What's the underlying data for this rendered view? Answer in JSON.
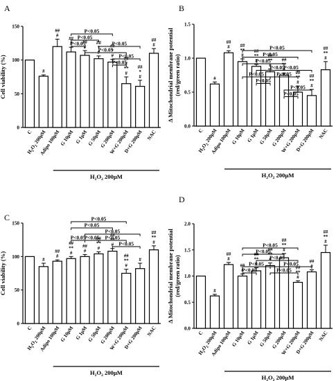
{
  "figure": {
    "x_labels": [
      "C",
      "H2O2 200μM",
      "Adipo 100μM",
      "G 10μM",
      "G 1μM",
      "G 50μM",
      "G 200μM",
      "W+G 200μM",
      "D+G 200μM",
      "NAC"
    ],
    "group_label": "H2O2 200μM",
    "bracket_text": "P<0.05"
  },
  "chart_data": [
    {
      "panel": "A",
      "type": "bar",
      "ylabel": "Cell viability (%)",
      "ylim": [
        0,
        150
      ],
      "yticks": [
        0,
        50,
        100,
        150
      ],
      "categories": [
        "C",
        "H2O2 200μM",
        "Adipo 100μM",
        "G 10μM",
        "G 1μM",
        "G 50μM",
        "G 200μM",
        "W+G 200μM",
        "D+G 200μM",
        "NAC"
      ],
      "values": [
        100,
        76,
        120,
        112,
        107,
        102,
        97,
        65,
        61,
        110
      ],
      "errors": [
        0,
        2,
        11,
        7,
        7,
        4,
        4,
        10,
        9,
        7
      ],
      "annotations": [
        [],
        [
          "#"
        ],
        [
          "##",
          "#"
        ],
        [
          "##",
          "#"
        ],
        [
          "##",
          "#"
        ],
        [
          "##",
          "*",
          "#"
        ],
        [
          "##",
          "*",
          "#"
        ],
        [
          "##",
          "#",
          "**",
          "#"
        ],
        [
          "##",
          "*",
          "#"
        ],
        [
          "##",
          "#"
        ]
      ],
      "brackets": [
        {
          "from": 3,
          "to": 6,
          "level": 0,
          "label": "P<0.05"
        },
        {
          "from": 3,
          "to": 5,
          "level": 1,
          "label": "P<0.05"
        },
        {
          "from": 3,
          "to": 4,
          "level": 2,
          "label": "P<0.05"
        },
        {
          "from": 4,
          "to": 7,
          "level": 3,
          "label": "P<0.05"
        },
        {
          "from": 5,
          "to": 8,
          "level": 2,
          "label": "P<0.05"
        },
        {
          "from": 6,
          "to": 8,
          "level": 4,
          "label": "P<0.05"
        },
        {
          "from": 6,
          "to": 7,
          "level": 5,
          "label": "P<0.05"
        }
      ]
    },
    {
      "panel": "B",
      "type": "bar",
      "ylabel": "Δ Mitochondrial membrane potential (red/green ratio)",
      "ylim": [
        0,
        1.5
      ],
      "yticks": [
        0,
        0.5,
        1.0,
        1.5
      ],
      "categories": [
        "C",
        "H2O2 200μM",
        "Adipo 100μM",
        "G 10μM",
        "G 1μM",
        "G 50μM",
        "G 200μM",
        "W+G 200μM",
        "D+G 200μM",
        "NAC"
      ],
      "values": [
        1.0,
        0.62,
        1.08,
        0.95,
        0.88,
        0.8,
        0.75,
        0.5,
        0.45,
        0.83
      ],
      "errors": [
        0,
        0.03,
        0.03,
        0.04,
        0.03,
        0.04,
        0.03,
        0.09,
        0.09,
        0.12
      ],
      "annotations": [
        [],
        [
          "#"
        ],
        [
          "##",
          "#"
        ],
        [
          "##",
          "**",
          "#"
        ],
        [
          "##",
          "**",
          "#"
        ],
        [
          "##",
          "**",
          "#"
        ],
        [
          "##",
          "**",
          "#"
        ],
        [
          "##",
          "**",
          "#"
        ],
        [
          "##",
          "**",
          "#"
        ],
        [
          "##",
          "**",
          "#"
        ]
      ],
      "brackets": [
        {
          "from": 3,
          "to": 8,
          "level": 0,
          "label": "P<0.05"
        },
        {
          "from": 3,
          "to": 7,
          "level": 1,
          "label": "P<0.05"
        },
        {
          "from": 3,
          "to": 6,
          "level": 2,
          "label": "P<0.05"
        },
        {
          "from": 4,
          "to": 7,
          "level": 3,
          "label": "P<0.05"
        },
        {
          "from": 3,
          "to": 5,
          "level": 4,
          "label": "P<0.05"
        },
        {
          "from": 5,
          "to": 7,
          "level": 4,
          "label": "P<0.05"
        },
        {
          "from": 5,
          "to": 8,
          "level": 3,
          "label": "P<0.05"
        },
        {
          "from": 4,
          "to": 5,
          "level": 5,
          "label": "P<0.05"
        },
        {
          "from": 6,
          "to": 8,
          "level": 6,
          "label": "P<0.05"
        },
        {
          "from": 6,
          "to": 7,
          "level": 7,
          "label": "P<0.05"
        }
      ]
    },
    {
      "panel": "C",
      "type": "bar",
      "ylabel": "Cell viability (%)",
      "ylim": [
        0,
        150
      ],
      "yticks": [
        0,
        50,
        100,
        150
      ],
      "categories": [
        "C",
        "H2O2 200μM",
        "Adipo 100μM",
        "G 10μM",
        "G 1μM",
        "G 50μM",
        "G 200μM",
        "W+G 200μM",
        "D+G 200μM",
        "NAC"
      ],
      "values": [
        100,
        85,
        93,
        97,
        100,
        104,
        108,
        75,
        82,
        110
      ],
      "errors": [
        0,
        5,
        2,
        3,
        3,
        3,
        4,
        6,
        8,
        6
      ],
      "annotations": [
        [],
        [
          "#"
        ],
        [
          "##",
          "#"
        ],
        [
          "##",
          "**",
          "#"
        ],
        [
          "##",
          "#"
        ],
        [
          "##",
          "**",
          "#"
        ],
        [
          "##",
          "**",
          "#"
        ],
        [
          "##",
          "**",
          "#"
        ],
        [
          "#"
        ],
        [
          "##",
          "**",
          "#"
        ]
      ],
      "brackets": [
        {
          "from": 3,
          "to": 7,
          "level": 0,
          "label": "P<0.05"
        },
        {
          "from": 3,
          "to": 6,
          "level": 1,
          "label": "P<0.05"
        },
        {
          "from": 4,
          "to": 8,
          "level": 2,
          "label": "P<0.05"
        },
        {
          "from": 3,
          "to": 4,
          "level": 3,
          "label": "P<0.05"
        },
        {
          "from": 4,
          "to": 5,
          "level": 3,
          "label": "P<0.05"
        },
        {
          "from": 5,
          "to": 7,
          "level": 3,
          "label": "P<0.05"
        },
        {
          "from": 6,
          "to": 8,
          "level": 4,
          "label": "P<0.05"
        }
      ]
    },
    {
      "panel": "D",
      "type": "bar",
      "ylabel": "Δ Mitochondrial membrane potential (red/green ratio)",
      "ylim": [
        0,
        2.0
      ],
      "yticks": [
        0,
        0.5,
        1.0,
        1.5,
        2.0
      ],
      "categories": [
        "C",
        "H2O2 200μM",
        "Adipo 100μM",
        "G 10μM",
        "G 1μM",
        "G 50μM",
        "G 200μM",
        "W+G 200μM",
        "D+G 200μM",
        "NAC"
      ],
      "values": [
        1.0,
        0.62,
        1.22,
        1.0,
        1.1,
        1.2,
        1.35,
        0.88,
        1.08,
        1.45
      ],
      "errors": [
        0,
        0.03,
        0.04,
        0.04,
        0.06,
        0.05,
        0.08,
        0.03,
        0.04,
        0.14
      ],
      "annotations": [
        [],
        [
          "#"
        ],
        [
          "##",
          "#"
        ],
        [
          "##",
          "#"
        ],
        [
          "##",
          "**",
          "#"
        ],
        [
          "##",
          "**",
          "#"
        ],
        [
          "##",
          "**",
          "#"
        ],
        [
          "##",
          "**",
          "#"
        ],
        [
          "##",
          "#"
        ],
        [
          "##",
          "**",
          "#"
        ]
      ],
      "brackets": [
        {
          "from": 3,
          "to": 7,
          "level": 0,
          "label": "P<0.05"
        },
        {
          "from": 3,
          "to": 6,
          "level": 1,
          "label": "P<0.05"
        },
        {
          "from": 4,
          "to": 7,
          "level": 2,
          "label": "P<0.05"
        },
        {
          "from": 3,
          "to": 5,
          "level": 3,
          "label": "P<0.05"
        },
        {
          "from": 5,
          "to": 8,
          "level": 3,
          "label": "P<0.05"
        },
        {
          "from": 3,
          "to": 4,
          "level": 4,
          "label": "P<0.05"
        },
        {
          "from": 5,
          "to": 7,
          "level": 4,
          "label": "P<0.05"
        }
      ]
    }
  ]
}
